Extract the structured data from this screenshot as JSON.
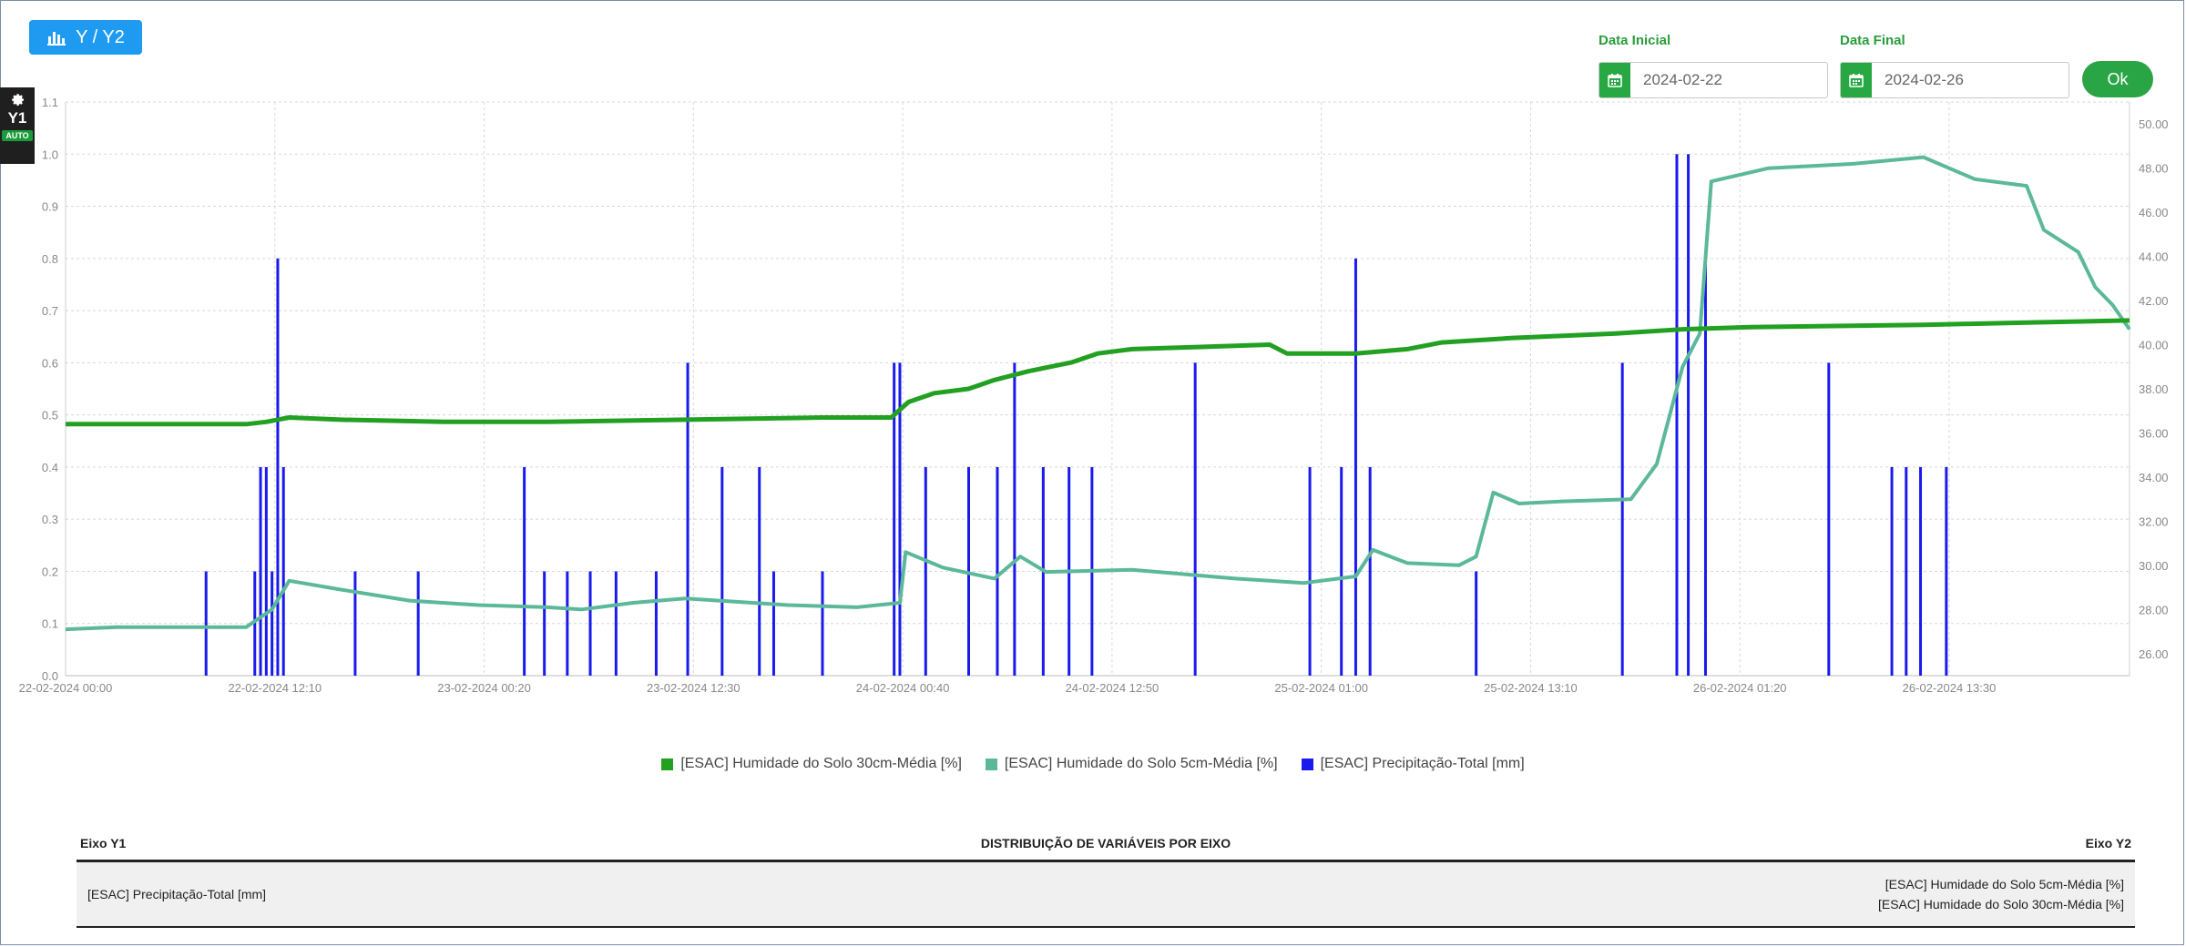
{
  "toolbar": {
    "axis_button_label": "Y / Y2"
  },
  "side_panel": {
    "axis_label": "Y1",
    "auto_label": "AUTO"
  },
  "date_filter": {
    "start_label": "Data Inicial",
    "start_value": "2024-02-22",
    "end_label": "Data Final",
    "end_value": "2024-02-26",
    "ok_label": "Ok"
  },
  "colors": {
    "series_30cm": "#22a022",
    "series_5cm": "#5cb89a",
    "series_precip": "#1a1aee",
    "accent": "#1e9bf0"
  },
  "chart_data": {
    "type": "line",
    "xlim": [
      "2024-02-22 00:00",
      "2024-02-26 23:59"
    ],
    "x_ticks": [
      {
        "label": "22-02-2024 00:00",
        "t": "2024-02-22 00:00"
      },
      {
        "label": "22-02-2024 12:10",
        "t": "2024-02-22 12:10"
      },
      {
        "label": "23-02-2024 00:20",
        "t": "2024-02-23 00:20"
      },
      {
        "label": "23-02-2024 12:30",
        "t": "2024-02-23 12:30"
      },
      {
        "label": "24-02-2024 00:40",
        "t": "2024-02-24 00:40"
      },
      {
        "label": "24-02-2024 12:50",
        "t": "2024-02-24 12:50"
      },
      {
        "label": "25-02-2024 01:00",
        "t": "2024-02-25 01:00"
      },
      {
        "label": "25-02-2024 13:10",
        "t": "2024-02-25 13:10"
      },
      {
        "label": "26-02-2024 01:20",
        "t": "2024-02-26 01:20"
      },
      {
        "label": "26-02-2024 13:30",
        "t": "2024-02-26 13:30"
      }
    ],
    "y_left": {
      "ylim": [
        0,
        1.1
      ],
      "ticks": [
        "0.0",
        "0.1",
        "0.2",
        "0.3",
        "0.4",
        "0.5",
        "0.6",
        "0.7",
        "0.8",
        "0.9",
        "1.0",
        "1.1"
      ]
    },
    "y_right": {
      "ylim": [
        25,
        51
      ],
      "ticks": [
        "26.00",
        "28.00",
        "30.00",
        "32.00",
        "34.00",
        "36.00",
        "38.00",
        "40.00",
        "42.00",
        "44.00",
        "46.00",
        "48.00",
        "50.00"
      ]
    },
    "grid": true,
    "legend_position": "bottom",
    "series": [
      {
        "name": "[ESAC] Humidade do Solo 30cm-Média [%]",
        "axis": "y2",
        "type": "line",
        "points": [
          [
            "2024-02-22 00:00",
            36.4
          ],
          [
            "2024-02-22 10:30",
            36.4
          ],
          [
            "2024-02-22 11:40",
            36.5
          ],
          [
            "2024-02-22 13:00",
            36.7
          ],
          [
            "2024-02-22 16:00",
            36.6
          ],
          [
            "2024-02-22 22:00",
            36.5
          ],
          [
            "2024-02-23 04:00",
            36.5
          ],
          [
            "2024-02-23 12:00",
            36.6
          ],
          [
            "2024-02-23 20:00",
            36.7
          ],
          [
            "2024-02-24 00:00",
            36.7
          ],
          [
            "2024-02-24 01:00",
            37.4
          ],
          [
            "2024-02-24 02:30",
            37.8
          ],
          [
            "2024-02-24 04:30",
            38.0
          ],
          [
            "2024-02-24 06:00",
            38.4
          ],
          [
            "2024-02-24 08:00",
            38.8
          ],
          [
            "2024-02-24 10:30",
            39.2
          ],
          [
            "2024-02-24 12:00",
            39.6
          ],
          [
            "2024-02-24 14:00",
            39.8
          ],
          [
            "2024-02-24 18:00",
            39.9
          ],
          [
            "2024-02-24 22:00",
            40.0
          ],
          [
            "2024-02-24 23:00",
            39.6
          ],
          [
            "2024-02-25 03:00",
            39.6
          ],
          [
            "2024-02-25 06:00",
            39.8
          ],
          [
            "2024-02-25 08:00",
            40.1
          ],
          [
            "2024-02-25 12:00",
            40.3
          ],
          [
            "2024-02-25 18:00",
            40.5
          ],
          [
            "2024-02-25 22:00",
            40.7
          ],
          [
            "2024-02-26 02:00",
            40.8
          ],
          [
            "2024-02-26 12:00",
            40.9
          ],
          [
            "2024-02-26 18:00",
            41.0
          ],
          [
            "2024-02-26 23:59",
            41.1
          ]
        ]
      },
      {
        "name": "[ESAC] Humidade do Solo 5cm-Média [%]",
        "axis": "y2",
        "type": "line",
        "points": [
          [
            "2024-02-22 00:00",
            27.1
          ],
          [
            "2024-02-22 03:00",
            27.2
          ],
          [
            "2024-02-22 06:00",
            27.2
          ],
          [
            "2024-02-22 10:30",
            27.2
          ],
          [
            "2024-02-22 12:00",
            28.0
          ],
          [
            "2024-02-22 13:00",
            29.3
          ],
          [
            "2024-02-22 16:00",
            28.9
          ],
          [
            "2024-02-22 20:00",
            28.4
          ],
          [
            "2024-02-23 00:00",
            28.2
          ],
          [
            "2024-02-23 04:00",
            28.1
          ],
          [
            "2024-02-23 06:00",
            28.0
          ],
          [
            "2024-02-23 09:00",
            28.3
          ],
          [
            "2024-02-23 12:00",
            28.5
          ],
          [
            "2024-02-23 18:00",
            28.2
          ],
          [
            "2024-02-23 22:00",
            28.1
          ],
          [
            "2024-02-24 00:30",
            28.3
          ],
          [
            "2024-02-24 00:50",
            30.6
          ],
          [
            "2024-02-24 03:00",
            29.9
          ],
          [
            "2024-02-24 06:00",
            29.4
          ],
          [
            "2024-02-24 07:30",
            30.4
          ],
          [
            "2024-02-24 09:00",
            29.7
          ],
          [
            "2024-02-24 14:00",
            29.8
          ],
          [
            "2024-02-24 20:00",
            29.4
          ],
          [
            "2024-02-25 00:00",
            29.2
          ],
          [
            "2024-02-25 03:00",
            29.5
          ],
          [
            "2024-02-25 04:00",
            30.7
          ],
          [
            "2024-02-25 06:00",
            30.1
          ],
          [
            "2024-02-25 09:00",
            30.0
          ],
          [
            "2024-02-25 10:00",
            30.4
          ],
          [
            "2024-02-25 11:00",
            33.3
          ],
          [
            "2024-02-25 12:30",
            32.8
          ],
          [
            "2024-02-25 15:00",
            32.9
          ],
          [
            "2024-02-25 19:00",
            33.0
          ],
          [
            "2024-02-25 20:30",
            34.6
          ],
          [
            "2024-02-25 22:00",
            39.0
          ],
          [
            "2024-02-25 23:00",
            40.5
          ],
          [
            "2024-02-25 23:40",
            47.4
          ],
          [
            "2024-02-26 03:00",
            48.0
          ],
          [
            "2024-02-26 08:00",
            48.2
          ],
          [
            "2024-02-26 12:00",
            48.5
          ],
          [
            "2024-02-26 15:00",
            47.5
          ],
          [
            "2024-02-26 18:00",
            47.2
          ],
          [
            "2024-02-26 19:00",
            45.2
          ],
          [
            "2024-02-26 21:00",
            44.2
          ],
          [
            "2024-02-26 22:00",
            42.6
          ],
          [
            "2024-02-26 23:00",
            41.8
          ],
          [
            "2024-02-26 23:59",
            40.7
          ]
        ]
      },
      {
        "name": "[ESAC] Precipitação-Total [mm]",
        "axis": "y",
        "type": "bar",
        "points": [
          [
            "2024-02-22 08:10",
            0.2
          ],
          [
            "2024-02-22 11:00",
            0.2
          ],
          [
            "2024-02-22 11:20",
            0.4
          ],
          [
            "2024-02-22 11:40",
            0.4
          ],
          [
            "2024-02-22 12:00",
            0.2
          ],
          [
            "2024-02-22 12:20",
            0.8
          ],
          [
            "2024-02-22 12:40",
            0.4
          ],
          [
            "2024-02-22 16:50",
            0.2
          ],
          [
            "2024-02-22 20:30",
            0.2
          ],
          [
            "2024-02-23 02:40",
            0.4
          ],
          [
            "2024-02-23 03:50",
            0.2
          ],
          [
            "2024-02-23 05:10",
            0.2
          ],
          [
            "2024-02-23 06:30",
            0.2
          ],
          [
            "2024-02-23 08:00",
            0.2
          ],
          [
            "2024-02-23 10:20",
            0.2
          ],
          [
            "2024-02-23 12:10",
            0.6
          ],
          [
            "2024-02-23 14:10",
            0.4
          ],
          [
            "2024-02-23 16:20",
            0.4
          ],
          [
            "2024-02-23 17:10",
            0.2
          ],
          [
            "2024-02-23 20:00",
            0.2
          ],
          [
            "2024-02-24 00:10",
            0.6
          ],
          [
            "2024-02-24 00:30",
            0.6
          ],
          [
            "2024-02-24 02:00",
            0.4
          ],
          [
            "2024-02-24 04:30",
            0.4
          ],
          [
            "2024-02-24 06:10",
            0.4
          ],
          [
            "2024-02-24 07:10",
            0.6
          ],
          [
            "2024-02-24 08:50",
            0.4
          ],
          [
            "2024-02-24 10:20",
            0.4
          ],
          [
            "2024-02-24 11:40",
            0.4
          ],
          [
            "2024-02-24 17:40",
            0.6
          ],
          [
            "2024-02-25 00:20",
            0.4
          ],
          [
            "2024-02-25 02:10",
            0.4
          ],
          [
            "2024-02-25 03:00",
            0.8
          ],
          [
            "2024-02-25 03:50",
            0.4
          ],
          [
            "2024-02-25 10:00",
            0.2
          ],
          [
            "2024-02-25 18:30",
            0.6
          ],
          [
            "2024-02-25 21:40",
            1.0
          ],
          [
            "2024-02-25 22:20",
            1.0
          ],
          [
            "2024-02-25 23:20",
            0.8
          ],
          [
            "2024-02-26 06:30",
            0.6
          ],
          [
            "2024-02-26 10:10",
            0.4
          ],
          [
            "2024-02-26 11:00",
            0.4
          ],
          [
            "2024-02-26 11:50",
            0.4
          ],
          [
            "2024-02-26 13:20",
            0.4
          ]
        ]
      }
    ]
  },
  "distribution_table": {
    "left_header": "Eixo Y1",
    "center_header": "DISTRIBUIÇÃO DE VARIÁVEIS POR EIXO",
    "right_header": "Eixo Y2",
    "left_items": [
      "[ESAC] Precipitação-Total [mm]"
    ],
    "right_items": [
      "[ESAC] Humidade do Solo 5cm-Média [%]",
      "[ESAC] Humidade do Solo 30cm-Média [%]"
    ]
  }
}
